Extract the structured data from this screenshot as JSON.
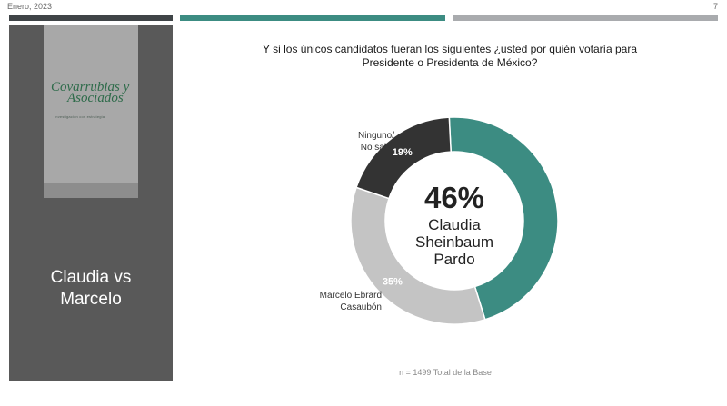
{
  "header": {
    "date": "Enero, 2023",
    "page_number": "7"
  },
  "sidebar": {
    "logo_line1": "Covarrubias y",
    "logo_line2": "Asociados",
    "logo_tagline": "Investigación con estrategia",
    "title_line1": "Claudia vs",
    "title_line2": "Marcelo"
  },
  "question": {
    "line1": "Y si los únicos candidatos fueran los siguientes ¿usted por quién votaría para",
    "line2": "Presidente o Presidenta de México?"
  },
  "chart_data": {
    "type": "pie",
    "donut": true,
    "title": "",
    "slices": [
      {
        "label": "Claudia Sheinbaum Pardo",
        "value": 46,
        "display": "46%",
        "color": "#3c8c82"
      },
      {
        "label": "Marcelo Ebrard Casaubón",
        "value": 35,
        "display": "35%",
        "color": "#c4c4c4"
      },
      {
        "label": "Ninguno/ No sabe",
        "value": 19,
        "display": "19%",
        "color": "#333333"
      }
    ],
    "center_value": "46%",
    "center_label_lines": [
      "Claudia",
      "Sheinbaum",
      "Pardo"
    ],
    "outer_labels": {
      "ninguno": [
        "Ninguno/",
        "No sabe"
      ],
      "marcelo": [
        "Marcelo Ebrard",
        "Casaubón"
      ]
    }
  },
  "footnote": "n = 1499 Total de la Base"
}
